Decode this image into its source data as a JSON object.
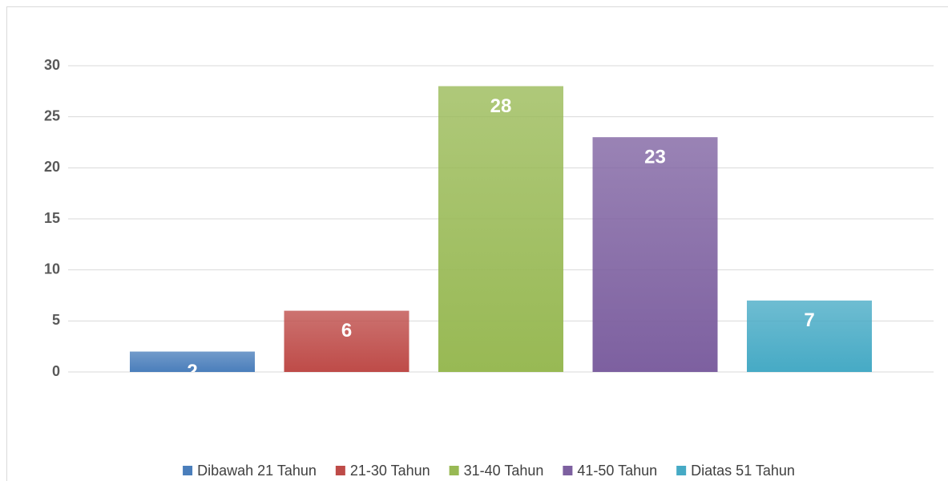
{
  "chart_data": {
    "type": "bar",
    "categories": [
      null
    ],
    "series": [
      {
        "name": "Dibawah 21 Tahun",
        "color": "#4a7ebb",
        "values": [
          2
        ]
      },
      {
        "name": "21-30 Tahun",
        "color": "#be4b48",
        "values": [
          6
        ]
      },
      {
        "name": "31-40 Tahun",
        "color": "#98b954",
        "values": [
          28
        ]
      },
      {
        "name": "41-50 Tahun",
        "color": "#7d60a0",
        "values": [
          23
        ]
      },
      {
        "name": "Diatas 51 Tahun",
        "color": "#46aac5",
        "values": [
          7
        ]
      }
    ],
    "ylim": [
      0,
      30
    ],
    "yticks": [
      0,
      5,
      10,
      15,
      20,
      25,
      30
    ],
    "grid": true,
    "legend": "bottom"
  }
}
